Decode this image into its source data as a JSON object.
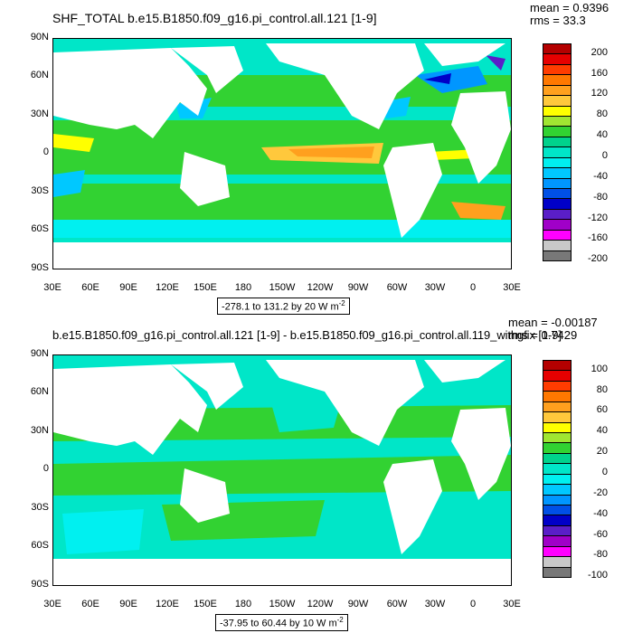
{
  "panels": [
    {
      "title": "SHF_TOTAL b.e15.B1850.f09_g16.pi_control.all.121 [1-9]",
      "mean": "mean = 0.9396",
      "rms": "rms = 33.3",
      "range": "-278.1 to 131.2 by 20  W m",
      "range_sup": "-2",
      "colorbar_labels": [
        "200",
        "160",
        "120",
        "80",
        "40",
        "0",
        "-40",
        "-80",
        "-120",
        "-160",
        "-200"
      ],
      "colorbar_colors": [
        "#b40000",
        "#e60000",
        "#ff3c00",
        "#ff7800",
        "#ffa01e",
        "#ffc83c",
        "#ffff00",
        "#a0e632",
        "#32d232",
        "#00d28c",
        "#00e6c8",
        "#00f0f0",
        "#00c8ff",
        "#0096ff",
        "#0050e6",
        "#0000c8",
        "#5a1ec8",
        "#a000c8",
        "#ff00ff",
        "#c8c8c8",
        "#787878"
      ]
    },
    {
      "title": "b.e15.B1850.f09_g16.pi_control.all.121 [1-9] - b.e15.B1850.f09_g16.pi_control.all.119_withgfix [1-9]",
      "mean": "mean = -0.00187",
      "rms": "rms = 0.7429",
      "range": "-37.95 to 60.44 by 10  W m",
      "range_sup": "-2",
      "colorbar_labels": [
        "100",
        "80",
        "60",
        "40",
        "20",
        "0",
        "-20",
        "-40",
        "-60",
        "-80",
        "-100"
      ],
      "colorbar_colors": [
        "#b40000",
        "#e60000",
        "#ff3c00",
        "#ff7800",
        "#ffa01e",
        "#ffc83c",
        "#ffff00",
        "#a0e632",
        "#32d232",
        "#00d28c",
        "#00e6c8",
        "#00f0f0",
        "#00c8ff",
        "#0096ff",
        "#0050e6",
        "#0000c8",
        "#5a1ec8",
        "#a000c8",
        "#ff00ff",
        "#c8c8c8",
        "#787878"
      ]
    }
  ],
  "lat_labels": [
    "90N",
    "60N",
    "30N",
    "0",
    "30S",
    "60S",
    "90S"
  ],
  "lon_labels": [
    "30E",
    "60E",
    "90E",
    "120E",
    "150E",
    "180",
    "150W",
    "120W",
    "90W",
    "60W",
    "30W",
    "0",
    "30E"
  ]
}
